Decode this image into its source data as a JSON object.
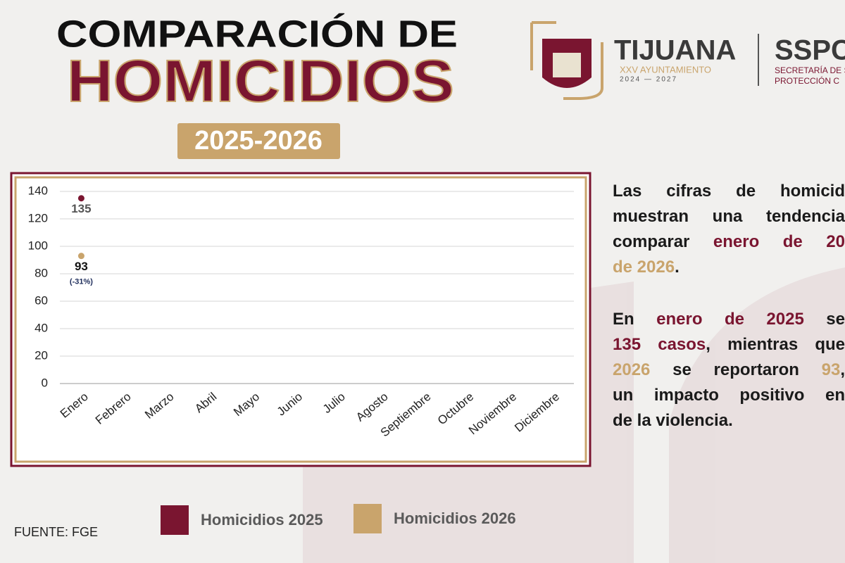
{
  "header": {
    "title_line1": "COMPARACIÓN DE",
    "title_line2": "HOMICIDIOS",
    "period": "2025-2026"
  },
  "logos": {
    "city": "TIJUANA",
    "council": "XXV AYUNTAMIENTO",
    "term": "2024 — 2027",
    "agency": "SSPC",
    "agency_line1": "SECRETARÍA DE S",
    "agency_line2": "PROTECCIÓN C"
  },
  "text_block": {
    "paragraphs": [
      [
        [
          {
            "text": "Las cifras de homicid"
          }
        ],
        [
          {
            "text": "muestran una tendencia"
          }
        ],
        [
          {
            "text": "comparar "
          },
          {
            "text": "enero de 20",
            "color": "#7a1530"
          }
        ],
        [
          {
            "text": "de 2026",
            "color": "#c9a46c"
          },
          {
            "text": "."
          }
        ]
      ],
      [
        [
          {
            "text": "En "
          },
          {
            "text": "enero de 2025",
            "color": "#7a1530"
          },
          {
            "text": " se"
          }
        ],
        [
          {
            "text": "135 casos",
            "color": "#7a1530"
          },
          {
            "text": ", mientras que"
          }
        ],
        [
          {
            "text": "2026",
            "color": "#c9a46c"
          },
          {
            "text": " se reportaron "
          },
          {
            "text": "93",
            "color": "#c9a46c"
          },
          {
            "text": ","
          }
        ],
        [
          {
            "text": "un impacto positivo en"
          }
        ],
        [
          {
            "text": "de la violencia."
          }
        ]
      ]
    ]
  },
  "chart_data": {
    "type": "scatter",
    "categories": [
      "Enero",
      "Febrero",
      "Marzo",
      "Abril",
      "Mayo",
      "Junio",
      "Julio",
      "Agosto",
      "Septiembre",
      "Octubre",
      "Noviembre",
      "Diciembre"
    ],
    "series": [
      {
        "name": "Homicidios 2025",
        "color": "#7a1530",
        "label_color": "#555555",
        "values": [
          135,
          null,
          null,
          null,
          null,
          null,
          null,
          null,
          null,
          null,
          null,
          null
        ]
      },
      {
        "name": "Homicidios 2026",
        "color": "#c9a46c",
        "label_color": "#111111",
        "values": [
          93,
          null,
          null,
          null,
          null,
          null,
          null,
          null,
          null,
          null,
          null,
          null
        ]
      }
    ],
    "annotation": "(-31%)",
    "ylim": [
      0,
      140
    ],
    "yticks": [
      0,
      20,
      40,
      60,
      80,
      100,
      120,
      140
    ],
    "grid": true
  },
  "source": "FUENTE: FGE"
}
